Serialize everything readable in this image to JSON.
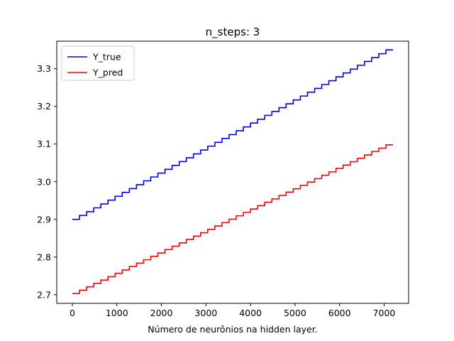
{
  "chart_data": {
    "type": "line",
    "title": "n_steps: 3",
    "xlabel": "Número de neurônios na hidden layer.",
    "ylabel": "",
    "xlim": [
      -350,
      7550
    ],
    "ylim": [
      2.677,
      3.373
    ],
    "xticks": [
      0,
      1000,
      2000,
      3000,
      4000,
      5000,
      6000,
      7000
    ],
    "xtick_labels": [
      "0",
      "1000",
      "2000",
      "3000",
      "4000",
      "5000",
      "6000",
      "7000"
    ],
    "yticks": [
      2.7,
      2.8,
      2.9,
      3.0,
      3.1,
      3.2,
      3.3
    ],
    "ytick_labels": [
      "2.7",
      "2.8",
      "2.9",
      "3.0",
      "3.1",
      "3.2",
      "3.3"
    ],
    "grid": false,
    "legend_position": "upper-left",
    "step_width": 160,
    "series": [
      {
        "name": "Y_true",
        "color": "#0000ff",
        "step": true,
        "x_start": 0,
        "x_end": 7200,
        "y_start": 2.9,
        "y_end": 3.35,
        "steps": 45
      },
      {
        "name": "Y_pred",
        "color": "#ff0000",
        "step": true,
        "x_start": 0,
        "x_end": 7200,
        "y_start": 2.703,
        "y_end": 3.098,
        "steps": 45
      }
    ]
  }
}
